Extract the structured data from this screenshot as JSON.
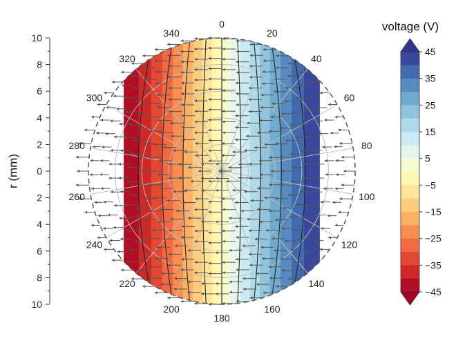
{
  "chart_data": {
    "type": "polar-contour-vector",
    "ylabel": "r (mm)",
    "colorbar_title": "voltage (V)",
    "r_range": [
      0,
      10
    ],
    "r_ticks": [
      "10",
      "8",
      "6",
      "4",
      "2",
      "0",
      "2",
      "4",
      "6",
      "8",
      "10"
    ],
    "angle_ticks": [
      "0",
      "20",
      "40",
      "60",
      "80",
      "100",
      "120",
      "140",
      "160",
      "180",
      "200",
      "220",
      "240",
      "260",
      "280",
      "300",
      "320",
      "340"
    ],
    "colorbar": {
      "min": -45,
      "max": 45,
      "ticks": [
        "45",
        "35",
        "25",
        "15",
        "5",
        "−5",
        "−15",
        "−25",
        "−35",
        "−45"
      ],
      "tick_values": [
        45,
        35,
        25,
        15,
        5,
        -5,
        -15,
        -25,
        -35,
        -45
      ],
      "colormap": "RdYlBu",
      "levels": 18
    },
    "field": {
      "description_of_values": "voltage increases from -45 V at the left (~270°) to +45 V at the right (~90°)",
      "min_voltage_deg": 270,
      "max_voltage_deg": 90,
      "vector_direction": "from high to low voltage (pointing left)"
    },
    "grid": true,
    "colors": {
      "low": "#a50026",
      "mid": "#ffffbf",
      "high": "#313695",
      "grid": "#bdbdbd",
      "contour": "#222222",
      "arrow": "#555555"
    }
  }
}
